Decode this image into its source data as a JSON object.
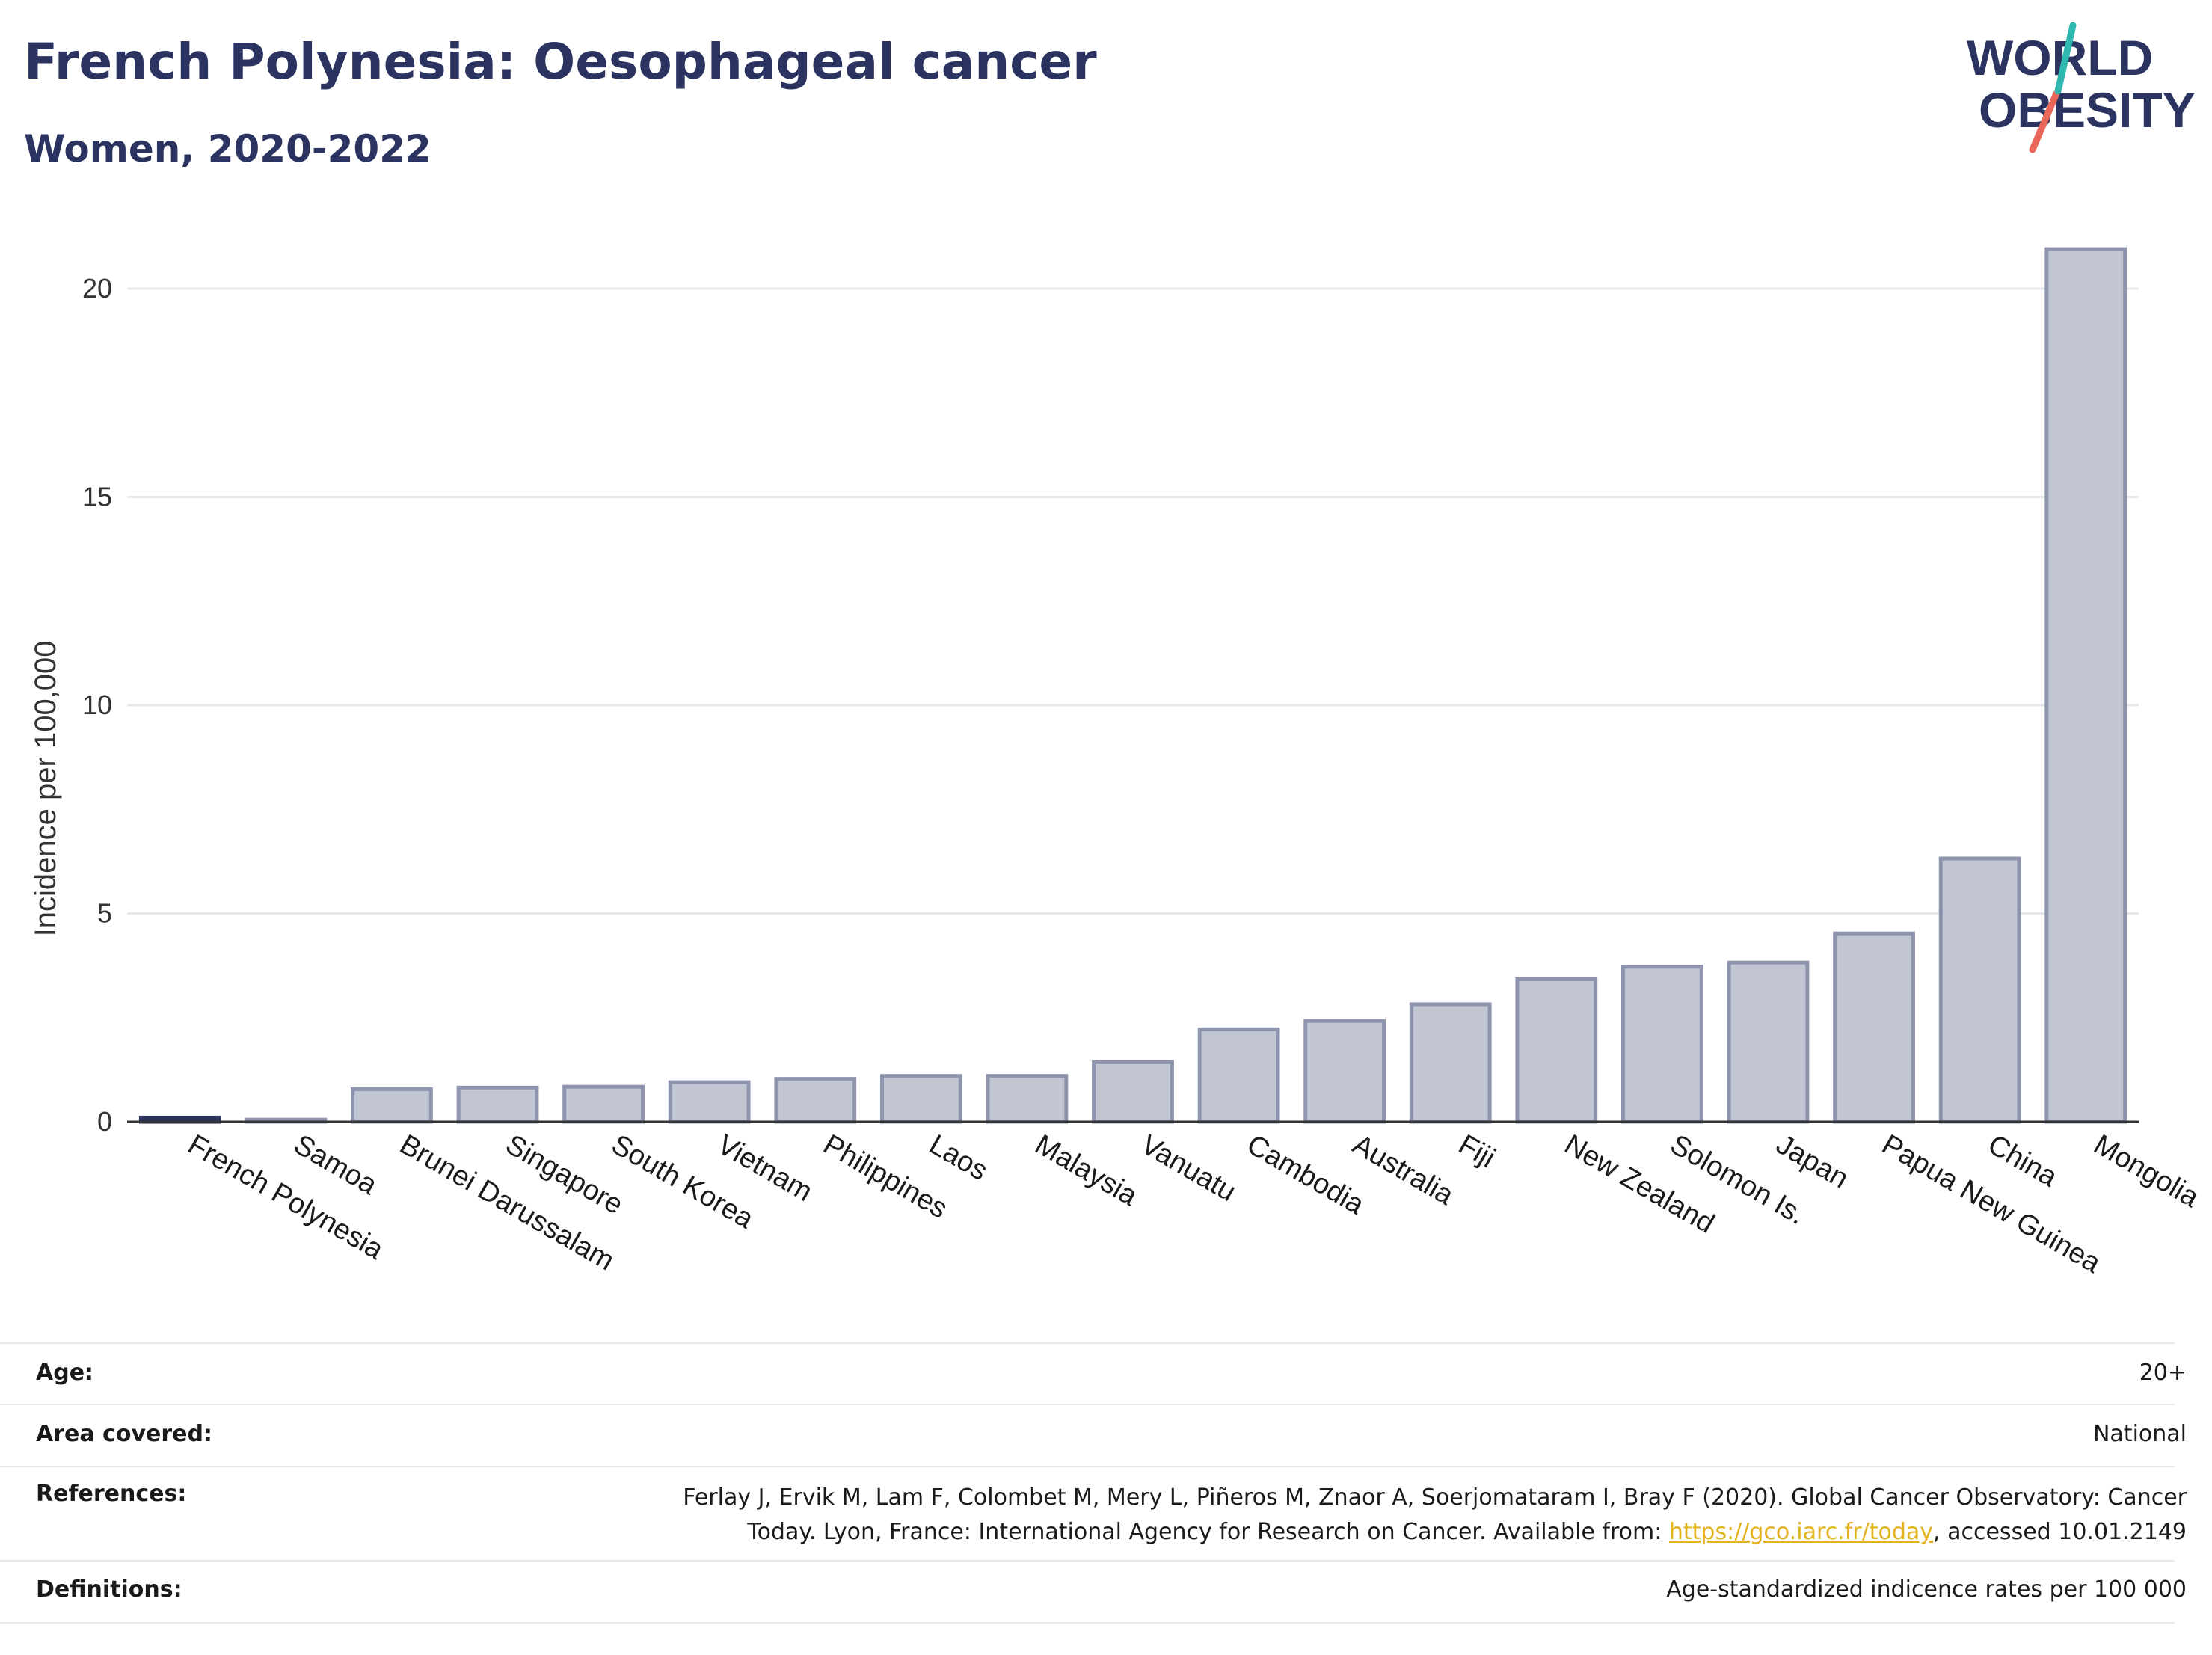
{
  "title": "French Polynesia: Oesophageal cancer",
  "subtitle": "Women, 2020-2022",
  "logo": {
    "line1": "WORLD",
    "line2": "OBESITY"
  },
  "chart_data": {
    "type": "bar",
    "ylabel": "Incidence per 100,000",
    "xlabel": "",
    "ylim": [
      0,
      22
    ],
    "yticks": [
      0,
      5,
      10,
      15,
      20
    ],
    "grid": true,
    "categories": [
      "French Polynesia",
      "Samoa",
      "Brunei Darussalam",
      "Singapore",
      "South Korea",
      "Vietnam",
      "Philippines",
      "Laos",
      "Malaysia",
      "Vanuatu",
      "Cambodia",
      "Australia",
      "Fiji",
      "New Zealand",
      "Solomon Is.",
      "Japan",
      "Papua New Guinea",
      "China",
      "Mongolia"
    ],
    "values": [
      0.1,
      0.05,
      0.78,
      0.82,
      0.84,
      0.95,
      1.03,
      1.1,
      1.1,
      1.43,
      2.22,
      2.42,
      2.82,
      3.42,
      3.72,
      3.82,
      4.52,
      6.32,
      20.95
    ],
    "highlight": "French Polynesia",
    "colors": {
      "bar": "#bfc3d0",
      "bar_edge": "#8e94ae",
      "highlight": "#2b3461",
      "grid": "#e6e8ee",
      "axis": "#333333"
    }
  },
  "meta": {
    "age_label": "Age:",
    "age_value": "20+",
    "area_label": "Area covered:",
    "area_value": "National",
    "references_label": "References:",
    "references_text_1": "Ferlay J, Ervik M, Lam F, Colombet M, Mery L, Piñeros M, Znaor A, Soerjomataram I, Bray F (2020). Global Cancer Observatory: Cancer",
    "references_text_2a": "Today. Lyon, France: International Agency for Research on Cancer. Available from: ",
    "references_link": "https://gco.iarc.fr/today",
    "references_text_2b": ", accessed 10.01.2149",
    "definitions_label": "Definitions:",
    "definitions_value": "Age-standardized indicence rates per 100 000"
  }
}
